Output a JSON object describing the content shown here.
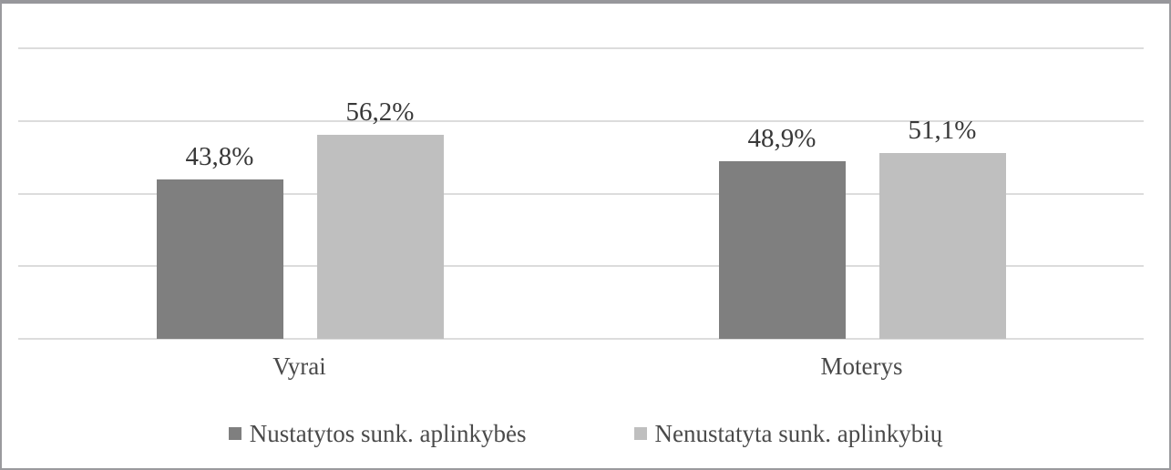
{
  "chart_data": {
    "type": "bar",
    "title": "",
    "xlabel": "",
    "ylabel": "",
    "categories": [
      "Vyrai",
      "Moterys"
    ],
    "series": [
      {
        "name": "Nustatytos sunk. aplinkybės",
        "color": "#7f7f7f",
        "values": [
          43.8,
          48.9
        ],
        "labels": [
          "43,8%",
          "48,9%"
        ]
      },
      {
        "name": "Nenustatyta sunk. aplinkybių",
        "color": "#bfbfbf",
        "values": [
          56.2,
          51.1
        ],
        "labels": [
          "56,2%",
          "51,1%"
        ]
      }
    ],
    "ylim": [
      0,
      80
    ],
    "gridline_step": 20,
    "grid": true,
    "axis_tick_labels_visible": false,
    "legend_position": "bottom"
  },
  "colors": {
    "gridline": "#dcdcdc",
    "frame_border": "#97979b",
    "data_label_text": "#383838",
    "axis_text": "#4a4a4a"
  }
}
